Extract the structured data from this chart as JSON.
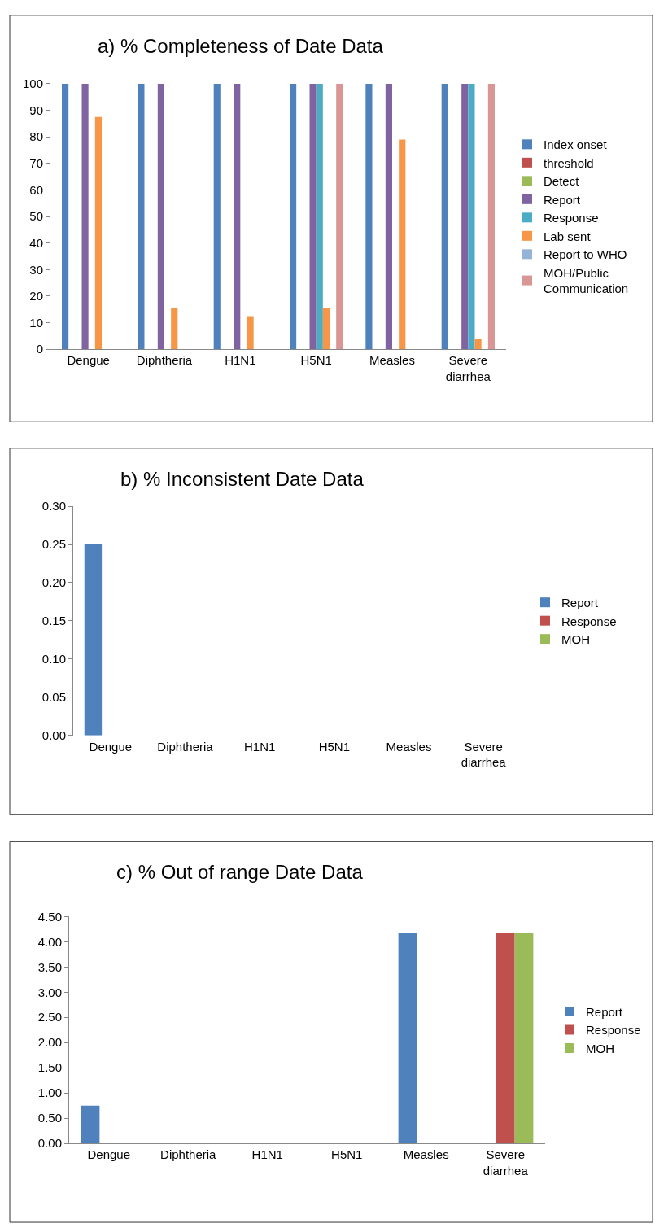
{
  "chart_data": [
    {
      "type": "bar",
      "title": "a) % Completeness of Date Data",
      "categories": [
        "Dengue",
        "Diphtheria",
        "H1N1",
        "H5N1",
        "Measles",
        "Severe diarrhea"
      ],
      "series": [
        {
          "name": "Index onset",
          "color": "#4f81bd",
          "values": [
            100,
            100,
            100,
            100,
            100,
            100
          ]
        },
        {
          "name": "threshold",
          "color": "#c0504d",
          "values": [
            0,
            0,
            0,
            0,
            0,
            0
          ]
        },
        {
          "name": "Detect",
          "color": "#9bbb59",
          "values": [
            0,
            0,
            0,
            0,
            0,
            0
          ]
        },
        {
          "name": "Report",
          "color": "#8064a2",
          "values": [
            100,
            100,
            100,
            100,
            100,
            100
          ]
        },
        {
          "name": "Response",
          "color": "#4bacc6",
          "values": [
            0,
            0,
            0,
            100,
            0,
            100
          ]
        },
        {
          "name": "Lab sent",
          "color": "#f79646",
          "values": [
            87.5,
            15.5,
            12.5,
            15.5,
            79,
            4
          ]
        },
        {
          "name": "Report to WHO",
          "color": "#95b3d7",
          "values": [
            0,
            0,
            0,
            0,
            0,
            0
          ]
        },
        {
          "name": "MOH/Public Communication",
          "color": "#d99694",
          "values": [
            0,
            0,
            0,
            100,
            0,
            100
          ]
        }
      ],
      "ylim": [
        0,
        100
      ],
      "yticks": [
        0,
        10,
        20,
        30,
        40,
        50,
        60,
        70,
        80,
        90,
        100
      ],
      "grid": false,
      "legend": "right"
    },
    {
      "type": "bar",
      "title": "b) % Inconsistent Date Data",
      "categories": [
        "Dengue",
        "Diphtheria",
        "H1N1",
        "H5N1",
        "Measles",
        "Severe diarrhea"
      ],
      "series": [
        {
          "name": "Report",
          "color": "#4f81bd",
          "values": [
            0.25,
            0,
            0,
            0,
            0,
            0
          ]
        },
        {
          "name": "Response",
          "color": "#c0504d",
          "values": [
            0,
            0,
            0,
            0,
            0,
            0
          ]
        },
        {
          "name": "MOH",
          "color": "#9bbb59",
          "values": [
            0,
            0,
            0,
            0,
            0,
            0
          ]
        }
      ],
      "ylim": [
        0,
        0.3
      ],
      "yticks": [
        {
          "value": 0,
          "label": "0.00"
        },
        {
          "value": 0.05,
          "label": "0.05"
        },
        {
          "value": 0.1,
          "label": "0.10"
        },
        {
          "value": 0.15,
          "label": "0.15"
        },
        {
          "value": 0.2,
          "label": "0.20"
        },
        {
          "value": 0.25,
          "label": "0.25"
        },
        {
          "value": 0.3,
          "label": "0.30"
        }
      ],
      "grid": false,
      "legend": "right"
    },
    {
      "type": "bar",
      "title": "c) % Out of range Date Data",
      "categories": [
        "Dengue",
        "Diphtheria",
        "H1N1",
        "H5N1",
        "Measles",
        "Severe diarrhea"
      ],
      "series": [
        {
          "name": "Report",
          "color": "#4f81bd",
          "values": [
            0.75,
            0,
            0,
            0,
            4.17,
            0
          ]
        },
        {
          "name": "Response",
          "color": "#c0504d",
          "values": [
            0,
            0,
            0,
            0,
            0,
            4.17
          ]
        },
        {
          "name": "MOH",
          "color": "#9bbb59",
          "values": [
            0,
            0,
            0,
            0,
            0,
            4.17
          ]
        }
      ],
      "ylim": [
        0,
        4.5
      ],
      "yticks": [
        {
          "value": 0,
          "label": "0.00"
        },
        {
          "value": 0.5,
          "label": "0.50"
        },
        {
          "value": 1,
          "label": "1.00"
        },
        {
          "value": 1.5,
          "label": "1.50"
        },
        {
          "value": 2,
          "label": "2.00"
        },
        {
          "value": 2.5,
          "label": "2.50"
        },
        {
          "value": 3,
          "label": "3.00"
        },
        {
          "value": 3.5,
          "label": "3.50"
        },
        {
          "value": 4,
          "label": "4.00"
        },
        {
          "value": 4.5,
          "label": "4.50"
        }
      ],
      "grid": false,
      "legend": "right"
    }
  ]
}
